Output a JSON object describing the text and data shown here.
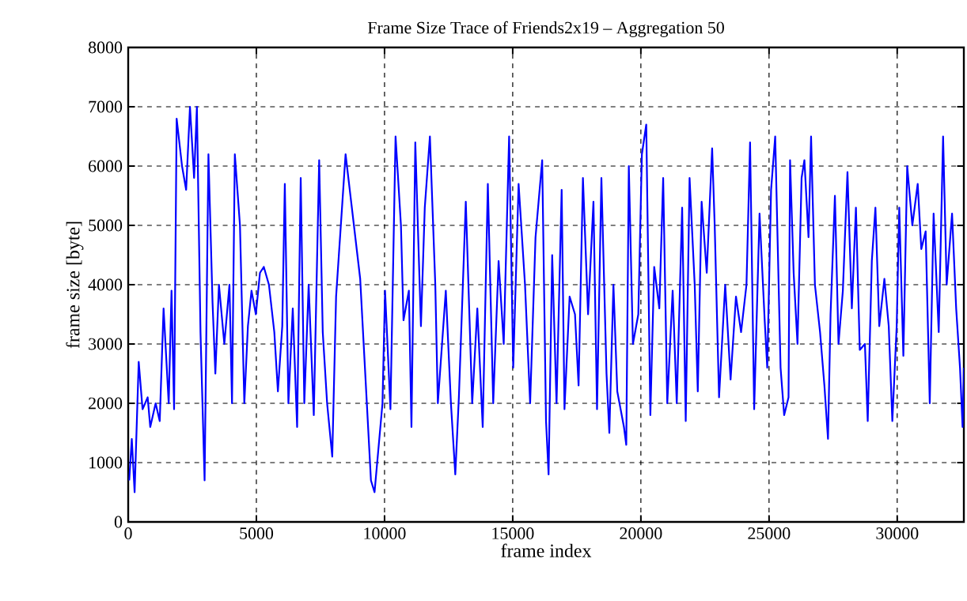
{
  "chart_data": {
    "type": "line",
    "title": "Frame Size Trace of Friends2x19 – Aggregation 50",
    "xlabel": "frame index",
    "ylabel": "frame size [byte]",
    "xlim": [
      0,
      32600
    ],
    "ylim": [
      0,
      8000
    ],
    "xticks": [
      0,
      5000,
      10000,
      15000,
      20000,
      25000,
      30000
    ],
    "yticks": [
      0,
      1000,
      2000,
      3000,
      4000,
      5000,
      6000,
      7000,
      8000
    ],
    "grid": true,
    "line_style": "solid",
    "marker": "none",
    "series": [
      {
        "color": "#0000ff",
        "x": [
          40,
          140,
          250,
          410,
          560,
          760,
          860,
          1070,
          1230,
          1380,
          1580,
          1690,
          1790,
          1890,
          2100,
          2260,
          2410,
          2570,
          2680,
          2820,
          2980,
          3130,
          3290,
          3400,
          3540,
          3750,
          3950,
          4050,
          4160,
          4360,
          4530,
          4670,
          4810,
          4980,
          5140,
          5290,
          5490,
          5700,
          5840,
          6010,
          6110,
          6250,
          6420,
          6590,
          6730,
          6870,
          7040,
          7240,
          7450,
          7590,
          7760,
          7960,
          8110,
          8480,
          9050,
          9470,
          9610,
          9920,
          10020,
          10230,
          10430,
          10640,
          10740,
          10950,
          11050,
          11200,
          11420,
          11570,
          11770,
          11980,
          12080,
          12390,
          12590,
          12760,
          12900,
          13170,
          13420,
          13620,
          13830,
          14030,
          14240,
          14450,
          14650,
          14860,
          15020,
          15230,
          15480,
          15680,
          15890,
          16150,
          16300,
          16400,
          16540,
          16710,
          16910,
          17020,
          17220,
          17430,
          17570,
          17740,
          17940,
          18150,
          18290,
          18460,
          18660,
          18770,
          18930,
          19080,
          19340,
          19430,
          19530,
          19690,
          19900,
          20040,
          20210,
          20370,
          20520,
          20720,
          20870,
          21030,
          21240,
          21400,
          21610,
          21750,
          21900,
          22100,
          22220,
          22370,
          22570,
          22780,
          22880,
          23050,
          23290,
          23500,
          23710,
          23910,
          24120,
          24260,
          24420,
          24630,
          24830,
          24930,
          25080,
          25240,
          25450,
          25590,
          25760,
          25820,
          25960,
          26110,
          26270,
          26380,
          26540,
          26640,
          26790,
          26990,
          27160,
          27300,
          27400,
          27570,
          27710,
          27880,
          28060,
          28230,
          28390,
          28540,
          28740,
          28850,
          29010,
          29150,
          29300,
          29500,
          29670,
          29810,
          29980,
          30080,
          30240,
          30390,
          30590,
          30800,
          30940,
          31110,
          31270,
          31420,
          31620,
          31790,
          31930,
          32140,
          32300,
          32450,
          32550,
          32600
        ],
        "values": [
          700,
          1400,
          500,
          2700,
          1900,
          2100,
          1600,
          2000,
          1700,
          3600,
          2000,
          3900,
          1900,
          6800,
          6000,
          5600,
          7000,
          5800,
          7000,
          3200,
          700,
          6200,
          3700,
          2500,
          4000,
          3000,
          4000,
          2000,
          6200,
          5000,
          2000,
          3300,
          3900,
          3500,
          4200,
          4300,
          4000,
          3200,
          2200,
          3300,
          5700,
          2000,
          3600,
          1600,
          5800,
          2000,
          4000,
          1800,
          6100,
          3200,
          2000,
          1100,
          3800,
          6200,
          4100,
          700,
          500,
          2000,
          3900,
          1900,
          6500,
          5000,
          3400,
          3900,
          1600,
          6400,
          3300,
          5300,
          6500,
          4000,
          2000,
          3900,
          2000,
          800,
          2100,
          5400,
          2000,
          3600,
          1600,
          5700,
          2000,
          4400,
          3000,
          6500,
          2600,
          5700,
          4000,
          2000,
          4800,
          6100,
          1700,
          800,
          4500,
          2000,
          5600,
          1900,
          3800,
          3500,
          2300,
          5800,
          3500,
          5400,
          1900,
          5800,
          2500,
          1500,
          4000,
          2200,
          1600,
          1300,
          6000,
          3000,
          3500,
          6200,
          6700,
          1800,
          4300,
          3600,
          5800,
          2000,
          3900,
          2000,
          5300,
          1700,
          5800,
          4000,
          2200,
          5400,
          4200,
          6300,
          5000,
          2100,
          4000,
          2400,
          3800,
          3200,
          4000,
          6400,
          1900,
          5200,
          3400,
          2600,
          5600,
          6500,
          2600,
          1800,
          2100,
          6100,
          4200,
          3000,
          5800,
          6100,
          4800,
          6500,
          4000,
          3200,
          2300,
          1400,
          3500,
          5500,
          3000,
          3900,
          5900,
          3600,
          5300,
          2900,
          3000,
          1700,
          4400,
          5300,
          3300,
          4100,
          3300,
          1700,
          3300,
          5300,
          2800,
          6000,
          5000,
          5700,
          4600,
          4900,
          2000,
          5200,
          3200,
          6500,
          4000,
          5200,
          3600,
          2600,
          1600,
          2600
        ]
      }
    ]
  }
}
